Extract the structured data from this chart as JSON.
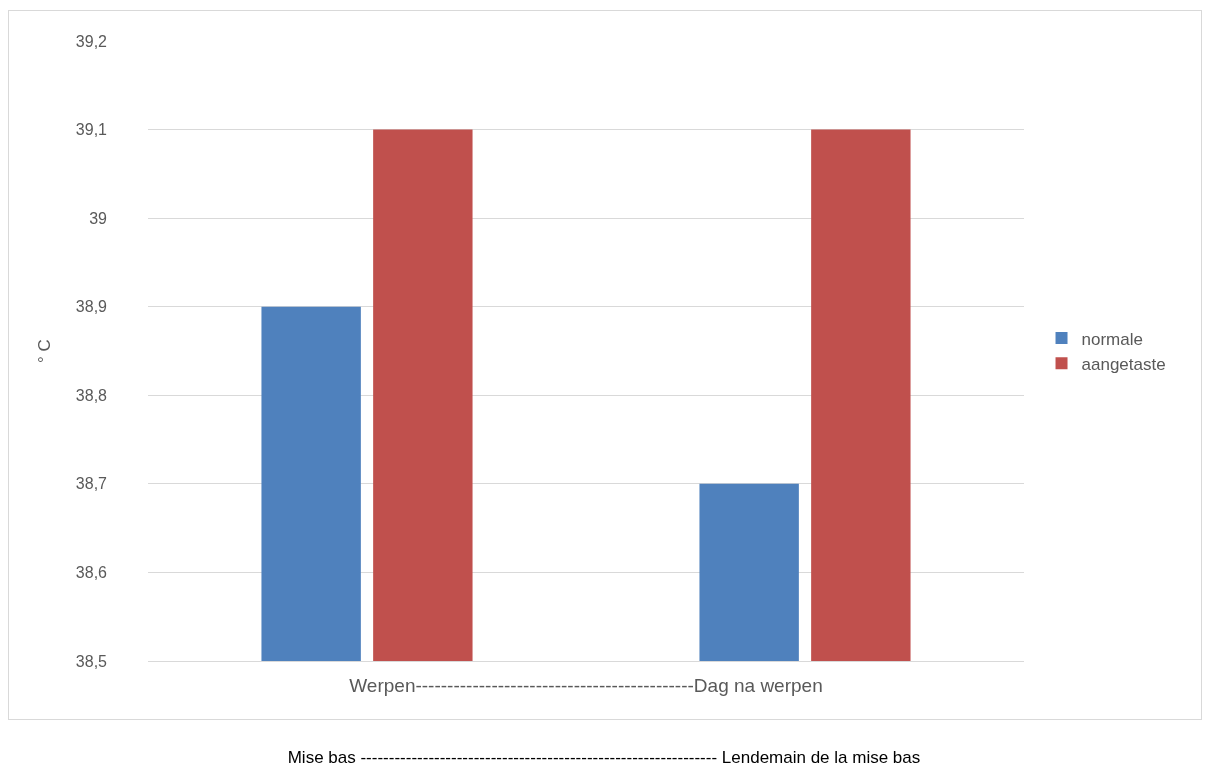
{
  "chart_data": {
    "type": "bar",
    "categories": [
      null,
      null
    ],
    "series": [
      {
        "name": "normale",
        "color": "#4f81bd",
        "values": [
          38.9,
          38.7
        ]
      },
      {
        "name": "aangetaste",
        "color": "#c0504d",
        "values": [
          39.1,
          39.1
        ]
      }
    ],
    "xlabel": "Werpen--------------------------------------------Dag na werpen",
    "ylabel": "° C",
    "ylim": [
      38.5,
      39.2
    ],
    "yticks": [
      {
        "value": 38.5,
        "label": "38,5"
      },
      {
        "value": 38.6,
        "label": "38,6"
      },
      {
        "value": 38.7,
        "label": "38,7"
      },
      {
        "value": 38.8,
        "label": "38,8"
      },
      {
        "value": 38.9,
        "label": "38,9"
      },
      {
        "value": 39,
        "label": "39"
      },
      {
        "value": 39.1,
        "label": "39,1"
      },
      {
        "value": 39.2,
        "label": "39,2"
      }
    ],
    "grid": "y",
    "legend": "right",
    "annotations": [
      "Mise bas --------------------------------------------------------------- Lendemain de la mise bas"
    ]
  }
}
